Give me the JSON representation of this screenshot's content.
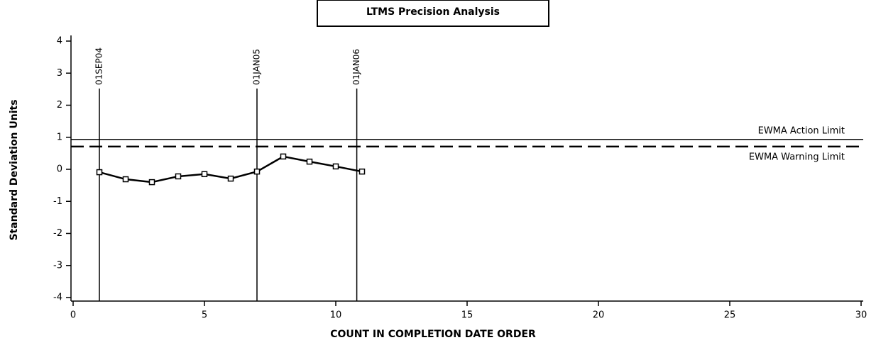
{
  "chart_data": {
    "type": "line",
    "title": "LTMS Precision Analysis",
    "xlabel": "COUNT IN COMPLETION DATE ORDER",
    "ylabel": "Standard Deviation Units",
    "x": [
      1,
      2,
      3,
      4,
      5,
      6,
      7,
      8,
      9,
      10,
      11
    ],
    "values": [
      -0.09,
      -0.31,
      -0.4,
      -0.22,
      -0.15,
      -0.29,
      -0.07,
      0.4,
      0.24,
      0.09,
      -0.07
    ],
    "color": "#000000",
    "xlim": [
      0,
      30
    ],
    "xticks": [
      0,
      5,
      10,
      15,
      20,
      25,
      30
    ],
    "ylim": [
      -4,
      4
    ],
    "yticks": [
      -4,
      -3,
      -2,
      -1,
      0,
      1,
      2,
      3,
      4
    ],
    "hlines": [
      {
        "value": 0.93,
        "label": "EWMA Action Limit",
        "style": "solid"
      },
      {
        "value": 0.71,
        "label": "EWMA Warning Limit",
        "style": "dashed"
      }
    ],
    "vlines": [
      {
        "value": 1,
        "label": "01SEP04"
      },
      {
        "value": 7,
        "label": "01JAN05"
      },
      {
        "value": 10.8,
        "label": "01JAN06"
      }
    ]
  }
}
